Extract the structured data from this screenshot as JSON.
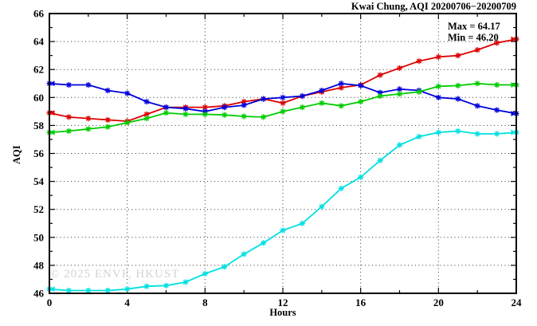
{
  "header": {
    "title": "Kwai Chung, AQI 20200706−20200709"
  },
  "annotations": {
    "max": "Max = 64.17",
    "min": "Min = 46.20"
  },
  "watermark": "© 2025 ENVF, HKUST",
  "axis": {
    "xlabel": "Hours",
    "ylabel": "AQI"
  },
  "chart_data": {
    "type": "line",
    "title": "Kwai Chung, AQI 20200706−20200709",
    "xlabel": "Hours",
    "ylabel": "AQI",
    "xlim": [
      0,
      24
    ],
    "ylim": [
      46,
      66
    ],
    "grid": true,
    "legend_position": "none",
    "stats": {
      "max": 64.17,
      "min": 46.2
    },
    "x_major_ticks": [
      0,
      4,
      8,
      12,
      16,
      20,
      24
    ],
    "x_minor_ticks": [
      2,
      6,
      10,
      14,
      18,
      22
    ],
    "y_major_ticks": [
      46,
      48,
      50,
      52,
      54,
      56,
      58,
      60,
      62,
      64,
      66
    ],
    "y_minor_ticks": [
      47,
      49,
      51,
      53,
      55,
      57,
      59,
      61,
      63,
      65
    ],
    "x": [
      0,
      1,
      2,
      3,
      4,
      5,
      6,
      7,
      8,
      9,
      10,
      11,
      12,
      13,
      14,
      15,
      16,
      17,
      18,
      19,
      20,
      21,
      22,
      23,
      24
    ],
    "series": [
      {
        "name": "red",
        "color": "#dd0000",
        "values": [
          58.9,
          58.6,
          58.5,
          58.4,
          58.3,
          58.8,
          59.3,
          59.3,
          59.3,
          59.4,
          59.7,
          59.9,
          59.6,
          60.1,
          60.4,
          60.7,
          60.9,
          61.6,
          62.1,
          62.6,
          62.9,
          63.0,
          63.4,
          63.9,
          64.17
        ]
      },
      {
        "name": "blue",
        "color": "#0000dd",
        "values": [
          61.0,
          60.9,
          60.9,
          60.5,
          60.3,
          59.7,
          59.3,
          59.2,
          59.0,
          59.3,
          59.45,
          59.9,
          60.0,
          60.1,
          60.5,
          61.0,
          60.85,
          60.35,
          60.6,
          60.5,
          60.0,
          59.9,
          59.4,
          59.1,
          58.85
        ]
      },
      {
        "name": "green",
        "color": "#00cc00",
        "values": [
          57.5,
          57.6,
          57.75,
          57.9,
          58.2,
          58.5,
          58.9,
          58.8,
          58.8,
          58.75,
          58.65,
          58.6,
          59.0,
          59.3,
          59.6,
          59.4,
          59.7,
          60.1,
          60.25,
          60.4,
          60.8,
          60.85,
          61.0,
          60.9,
          60.9
        ]
      },
      {
        "name": "cyan",
        "color": "#00e0e0",
        "values": [
          46.3,
          46.2,
          46.2,
          46.2,
          46.3,
          46.5,
          46.55,
          46.8,
          47.4,
          47.9,
          48.8,
          49.6,
          50.5,
          51.0,
          52.2,
          53.5,
          54.3,
          55.5,
          56.6,
          57.2,
          57.5,
          57.6,
          57.4,
          57.4,
          57.5
        ]
      }
    ]
  }
}
